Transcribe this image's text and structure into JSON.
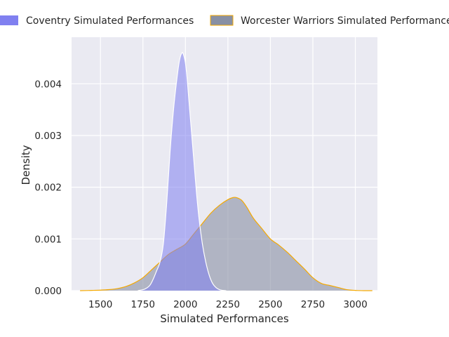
{
  "chart_data": {
    "type": "area",
    "title": "",
    "xlabel": "Simulated Performances",
    "ylabel": "Density",
    "xlim": [
      1330,
      3130
    ],
    "ylim": [
      0,
      0.0049
    ],
    "x_ticks": [
      1500,
      1750,
      2000,
      2250,
      2500,
      2750,
      3000
    ],
    "x_tick_labels": [
      "1500",
      "1750",
      "2000",
      "2250",
      "2500",
      "2750",
      "3000"
    ],
    "y_ticks": [
      0,
      0.001,
      0.002,
      0.003,
      0.004
    ],
    "y_tick_labels": [
      "0.000",
      "0.001",
      "0.002",
      "0.003",
      "0.004"
    ],
    "grid": true,
    "legend_placement": "top",
    "series": [
      {
        "name": "Coventry Simulated Performances",
        "fill": "#8080f0",
        "line": "#ffffff",
        "x": [
          1720,
          1760,
          1790,
          1810,
          1830,
          1850,
          1870,
          1890,
          1910,
          1930,
          1950,
          1965,
          1980,
          1990,
          2000,
          2010,
          2020,
          2035,
          2050,
          2065,
          2080,
          2100,
          2120,
          2140,
          2160,
          2180,
          2200,
          2220,
          2240
        ],
        "y": [
          0.0,
          3e-05,
          0.0001,
          0.00022,
          0.00038,
          0.00055,
          0.0009,
          0.0017,
          0.0027,
          0.0035,
          0.0041,
          0.00445,
          0.0046,
          0.00455,
          0.0044,
          0.0041,
          0.0037,
          0.0031,
          0.0025,
          0.0019,
          0.0014,
          0.0009,
          0.00055,
          0.0003,
          0.00014,
          6e-05,
          2e-05,
          5e-06,
          0.0
        ]
      },
      {
        "name": "Worcester Warriors Simulated Performances",
        "fill": "#8890a4",
        "line": "#f5a900",
        "x": [
          1380,
          1450,
          1500,
          1550,
          1600,
          1650,
          1700,
          1750,
          1800,
          1850,
          1900,
          1950,
          2000,
          2050,
          2100,
          2150,
          2200,
          2250,
          2280,
          2300,
          2330,
          2360,
          2400,
          2450,
          2500,
          2550,
          2600,
          2650,
          2700,
          2750,
          2800,
          2850,
          2900,
          2950,
          3000,
          3050,
          3100
        ],
        "y": [
          0.0,
          5e-06,
          1e-05,
          2e-05,
          4e-05,
          8e-05,
          0.00015,
          0.00025,
          0.0004,
          0.00055,
          0.0007,
          0.0008,
          0.0009,
          0.0011,
          0.0013,
          0.0015,
          0.00165,
          0.00176,
          0.0018,
          0.0018,
          0.00175,
          0.00162,
          0.0014,
          0.0012,
          0.001,
          0.00088,
          0.00074,
          0.00058,
          0.00042,
          0.00025,
          0.00014,
          0.0001,
          6e-05,
          2e-05,
          5e-06,
          0.0,
          0.0
        ]
      }
    ]
  }
}
